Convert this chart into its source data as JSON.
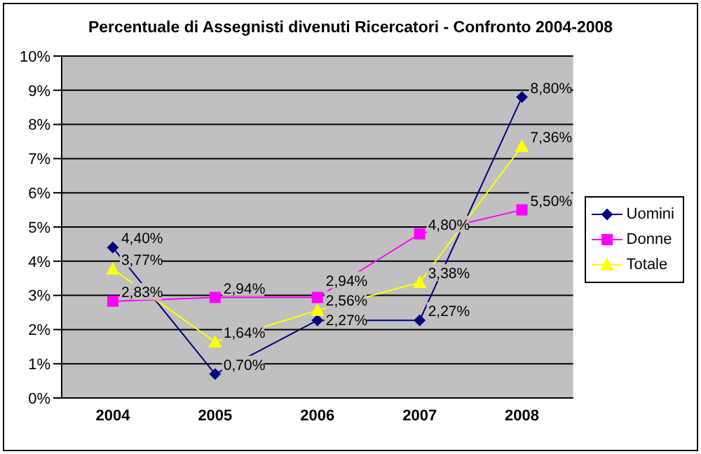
{
  "chart_data": {
    "type": "line",
    "title": "Percentuale di Assegnisti divenuti Ricercatori - Confronto 2004-2008",
    "categories": [
      "2004",
      "2005",
      "2006",
      "2007",
      "2008"
    ],
    "series": [
      {
        "name": "Uomini",
        "color": "#000080",
        "marker": "diamond",
        "values": [
          4.4,
          0.7,
          2.27,
          2.27,
          8.8
        ],
        "value_labels": [
          "4,40%",
          "0,70%",
          "2,27%",
          "2,27%",
          "8,80%"
        ]
      },
      {
        "name": "Donne",
        "color": "#ff00ff",
        "marker": "square",
        "values": [
          2.83,
          2.94,
          2.94,
          4.8,
          5.5
        ],
        "value_labels": [
          "2,83%",
          "2,94%",
          "2,94%",
          "4,80%",
          "5,50%"
        ]
      },
      {
        "name": "Totale",
        "color": "#ffff00",
        "marker": "triangle",
        "values": [
          3.77,
          1.64,
          2.56,
          3.38,
          7.36
        ],
        "value_labels": [
          "3,77%",
          "1,64%",
          "2,56%",
          "3,38%",
          "7,36%"
        ]
      }
    ],
    "ylim": [
      0,
      10
    ],
    "yticks": [
      {
        "value": 0,
        "label": "0%"
      },
      {
        "value": 1,
        "label": "1%"
      },
      {
        "value": 2,
        "label": "2%"
      },
      {
        "value": 3,
        "label": "3%"
      },
      {
        "value": 4,
        "label": "4%"
      },
      {
        "value": 5,
        "label": "5%"
      },
      {
        "value": 6,
        "label": "6%"
      },
      {
        "value": 7,
        "label": "7%"
      },
      {
        "value": 8,
        "label": "8%"
      },
      {
        "value": 9,
        "label": "9%"
      },
      {
        "value": 10,
        "label": "10%"
      }
    ],
    "grid": "y",
    "legend": "right"
  }
}
